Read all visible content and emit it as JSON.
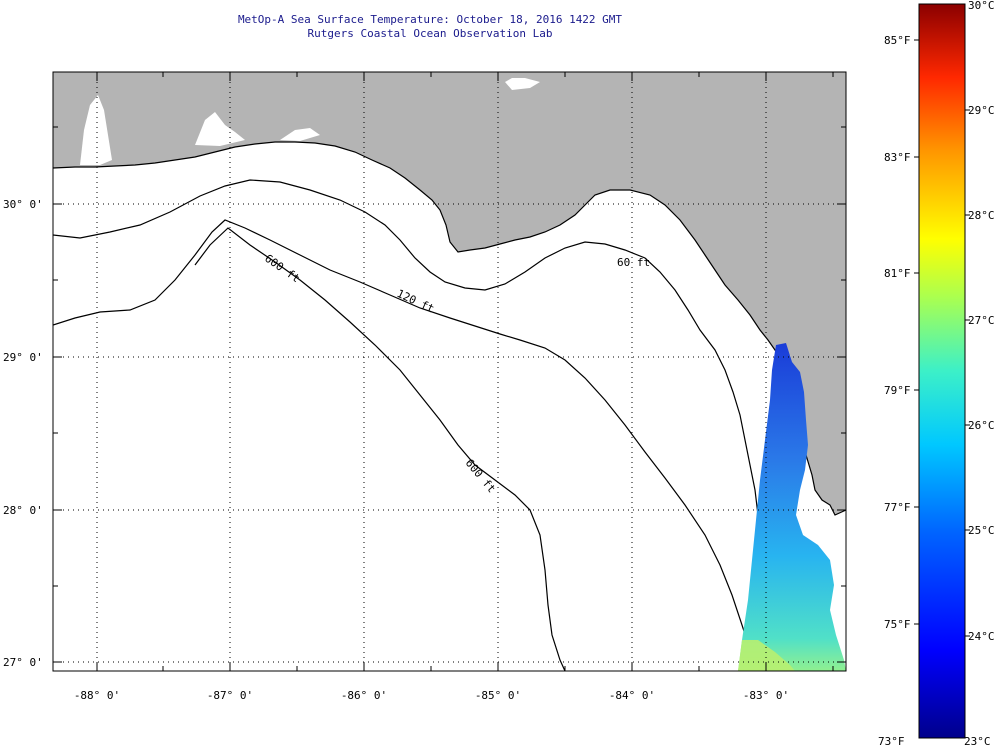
{
  "title": {
    "line1": "MetOp-A Sea Surface Temperature:  October 18, 2016 1422 GMT",
    "line2": "Rutgers Coastal Ocean Observation Lab"
  },
  "axes": {
    "lat_labels": [
      "30° 0'",
      "29° 0'",
      "28° 0'",
      "27° 0'"
    ],
    "lon_labels": [
      "-88° 0'",
      "-87° 0'",
      "-86° 0'",
      "-85° 0'",
      "-84° 0'",
      "-83° 0'"
    ]
  },
  "contours": {
    "c60": "60 ft",
    "c120": "120 ft",
    "c600a": "600 ft",
    "c600b": "600 ft"
  },
  "colorbar": {
    "celsius": [
      "30°C",
      "29°C",
      "28°C",
      "27°C",
      "26°C",
      "25°C",
      "24°C",
      "23°C"
    ],
    "fahrenheit": [
      "85°F",
      "83°F",
      "81°F",
      "79°F",
      "77°F",
      "75°F",
      "73°F"
    ]
  },
  "colors": {
    "land": "#b4b4b4",
    "sea": "#ffffff",
    "title": "#1a1a8c",
    "sst_low": "#0000a0",
    "sst_high": "#8b0000"
  }
}
